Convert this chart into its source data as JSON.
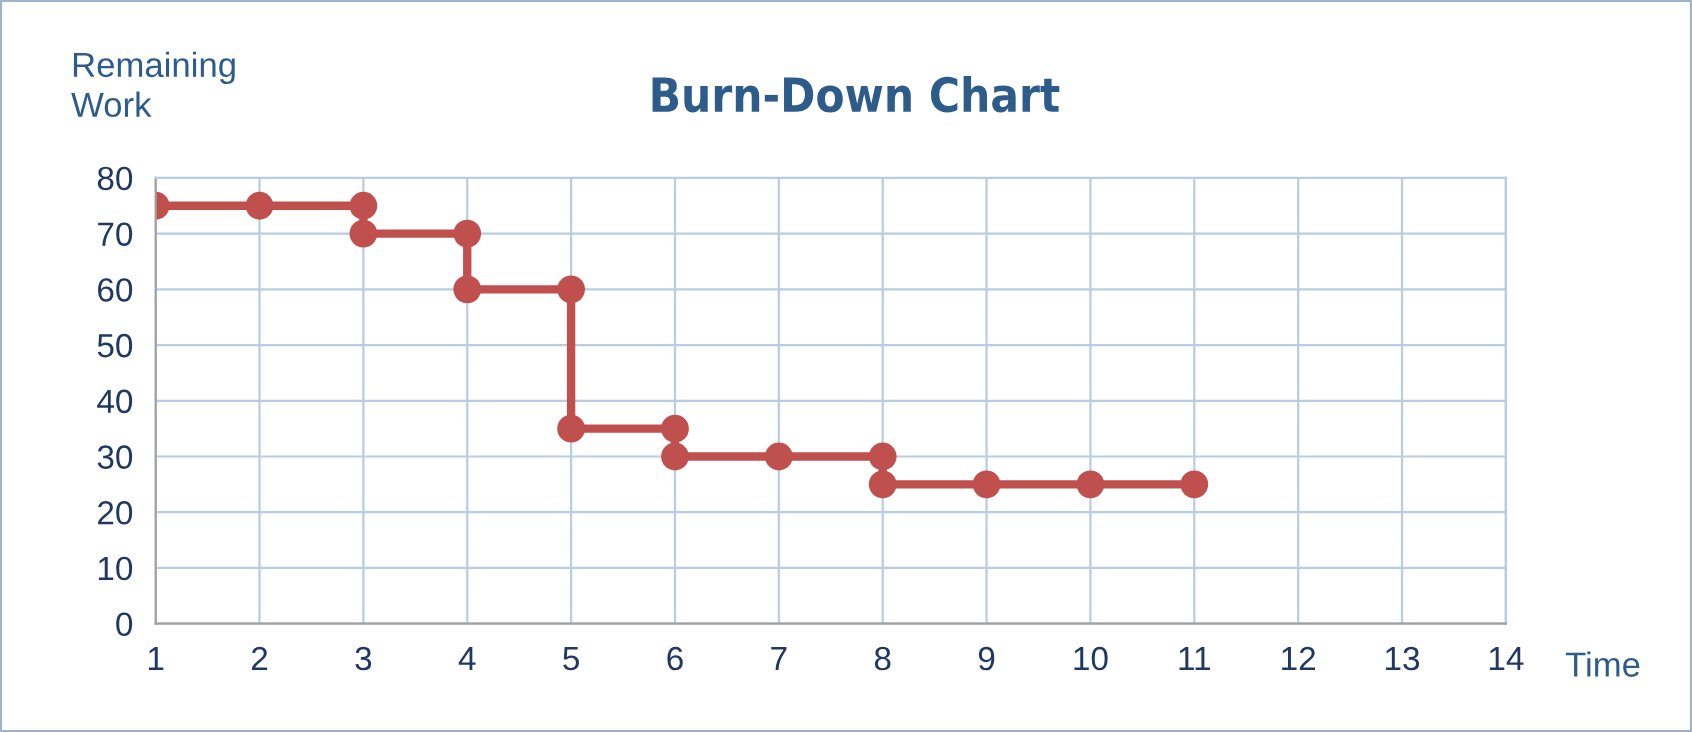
{
  "chart_data": {
    "type": "line",
    "title": "Burn-Down Chart",
    "ylabel": "Remaining\nWork",
    "xlabel": "Time",
    "series": [
      {
        "color": "#c0504d",
        "x": [
          1,
          2,
          3,
          3,
          4,
          4,
          5,
          5,
          6,
          6,
          7,
          8,
          8,
          9,
          10,
          11
        ],
        "values": [
          75,
          75,
          75,
          70,
          70,
          60,
          60,
          35,
          35,
          30,
          30,
          30,
          25,
          25,
          25,
          25
        ]
      }
    ],
    "xlim": [
      1,
      14
    ],
    "xticks": [
      1,
      2,
      3,
      4,
      5,
      6,
      7,
      8,
      9,
      10,
      11,
      12,
      13,
      14
    ],
    "ylim": [
      0,
      80
    ],
    "yticks": [
      0,
      10,
      20,
      30,
      40,
      50,
      60,
      70,
      80
    ],
    "grid": true,
    "marker": "circle",
    "line_style": "solid"
  }
}
